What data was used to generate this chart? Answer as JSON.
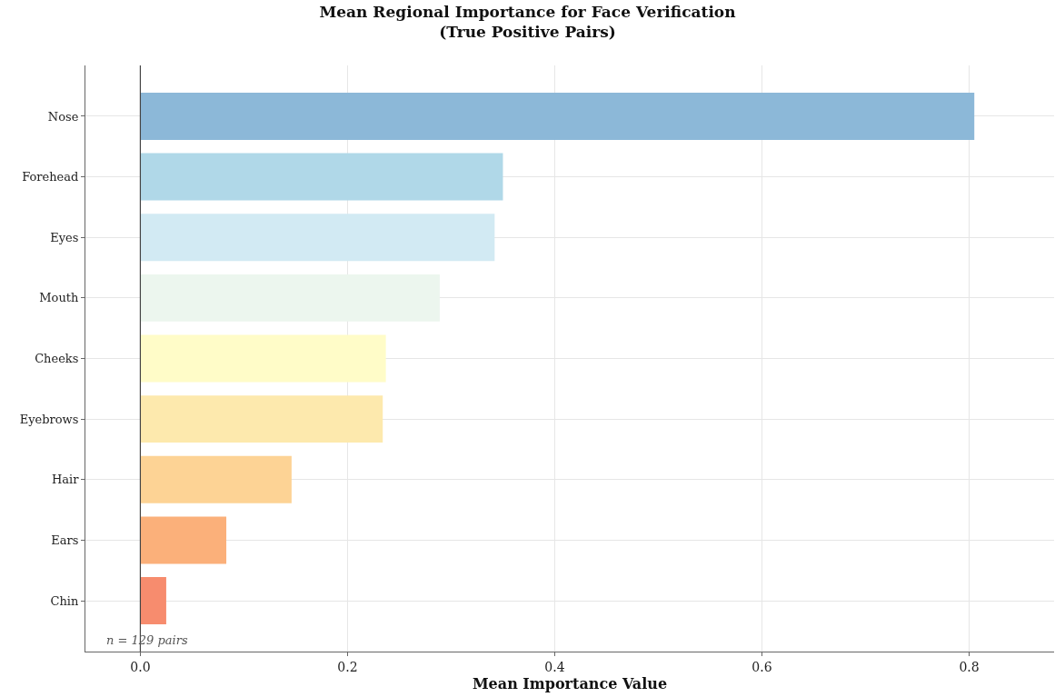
{
  "chart_data": {
    "type": "bar",
    "orientation": "horizontal",
    "title": "Mean Regional Importance for Face Verification\n(True Positive Pairs)",
    "xlabel": "Mean Importance Value",
    "categories": [
      "Nose",
      "Forehead",
      "Eyes",
      "Mouth",
      "Cheeks",
      "Eyebrows",
      "Hair",
      "Ears",
      "Chin"
    ],
    "values": [
      0.805,
      0.35,
      0.342,
      0.289,
      0.237,
      0.234,
      0.146,
      0.083,
      0.025
    ],
    "colors": [
      "#8cb8d8",
      "#b0d8e8",
      "#d2eaf3",
      "#ecf6ee",
      "#fffcc8",
      "#fde9ad",
      "#fdd395",
      "#fbb07a",
      "#f78c6e"
    ],
    "xlim": [
      -0.053,
      0.882
    ],
    "xticks": [
      {
        "value": 0,
        "label": "0.0"
      },
      0.2,
      0.4,
      0.6,
      0.8
    ],
    "grid": true,
    "ref_lines": [
      {
        "axis": "x",
        "value": 0,
        "color": "#444444"
      }
    ],
    "annotations": [
      "n = 129 pairs"
    ]
  }
}
